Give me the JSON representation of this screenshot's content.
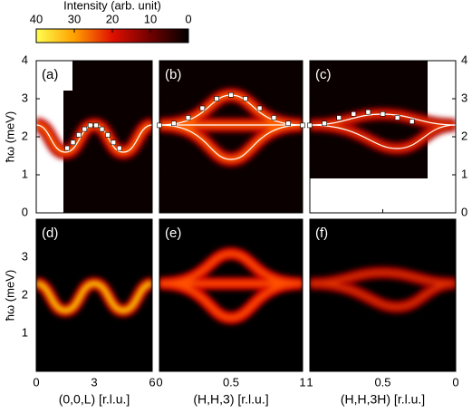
{
  "colorbar": {
    "title": "Intensity (arb. unit)",
    "ticks": [
      40,
      30,
      20,
      10,
      0
    ],
    "lim": [
      40,
      0
    ]
  },
  "ylabel": "ħω (meV)",
  "top_row": {
    "ylim": [
      0,
      4
    ],
    "yticks": [
      0,
      1,
      2,
      3,
      4
    ]
  },
  "bottom_row": {
    "ylim": [
      0,
      4
    ],
    "yticks": [
      1,
      2,
      3
    ]
  },
  "columns": [
    {
      "xlabel": "(0,0,L) [r.l.u.]",
      "xlim": [
        0,
        6
      ],
      "xticks": [
        0,
        3,
        6
      ],
      "top_label": "(a)",
      "bottom_label": "(d)",
      "points": {
        "x": [
          1.6,
          1.9,
          2.2,
          2.5,
          2.8,
          3.1,
          3.4,
          3.7,
          4.0,
          4.3
        ],
        "y": [
          1.7,
          1.85,
          2.05,
          2.2,
          2.3,
          2.3,
          2.2,
          2.05,
          1.85,
          1.7
        ]
      }
    },
    {
      "xlabel": "(H,H,3) [r.l.u.]",
      "xlim": [
        0,
        1
      ],
      "xticks": [
        0,
        0.5,
        1
      ],
      "top_label": "(b)",
      "bottom_label": "(e)",
      "points": {
        "x": [
          0,
          0.1,
          0.2,
          0.3,
          0.4,
          0.5,
          0.6,
          0.7,
          0.8,
          0.9,
          1
        ],
        "y": [
          2.3,
          2.35,
          2.5,
          2.75,
          3.0,
          3.1,
          3.0,
          2.75,
          2.5,
          2.35,
          2.3
        ]
      }
    },
    {
      "xlabel": "(H,H,3H) [r.l.u.]",
      "xlim": [
        1,
        0
      ],
      "xticks": [
        1,
        0.5,
        0
      ],
      "top_label": "(c)",
      "bottom_label": "(f)",
      "points": {
        "x": [
          1,
          0.9,
          0.8,
          0.7,
          0.6,
          0.5,
          0.4,
          0.3
        ],
        "y": [
          2.3,
          2.35,
          2.5,
          2.6,
          2.65,
          2.6,
          2.5,
          2.4
        ]
      }
    }
  ]
}
